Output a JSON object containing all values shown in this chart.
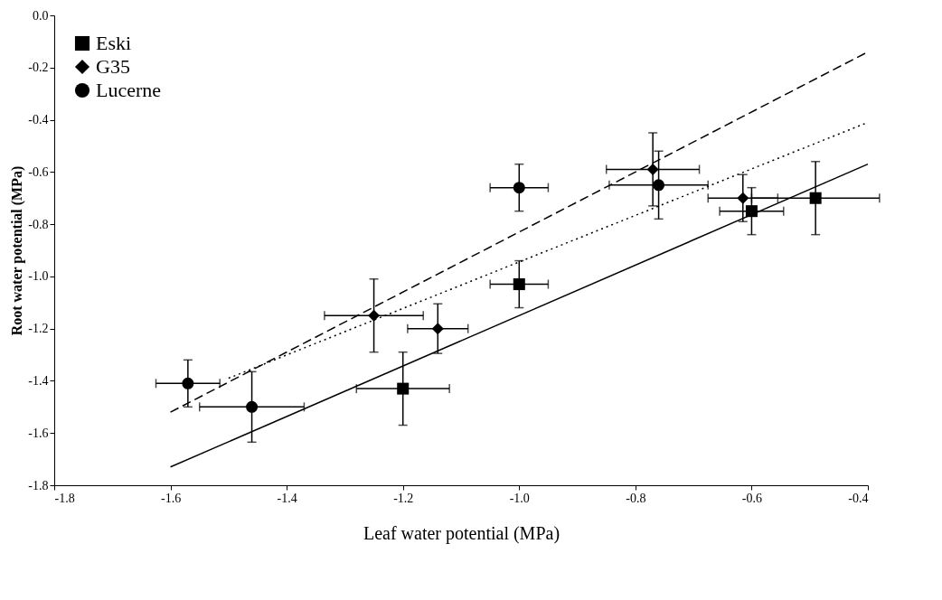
{
  "chart_data": {
    "type": "scatter",
    "xlabel": "Leaf water potential (MPa)",
    "ylabel": "Root water potential (MPa)",
    "xlim": [
      -1.8,
      -0.4
    ],
    "ylim": [
      -1.8,
      0.0
    ],
    "xticks": [
      -1.8,
      -1.6,
      -1.4,
      -1.2,
      {
        "value": -1.0,
        "label": "-1.0"
      },
      -0.8,
      -0.6,
      -0.4
    ],
    "yticks": [
      {
        "value": 0.0,
        "label": "0.0"
      },
      -0.2,
      -0.4,
      -0.6,
      -0.8,
      {
        "value": -1.0,
        "label": "-1.0"
      },
      -1.2,
      -1.4,
      -1.6,
      -1.8
    ],
    "grid": false,
    "legend": "top left",
    "series": [
      {
        "name": "Eski",
        "type": "scatter",
        "marker": "square",
        "color": "#000000",
        "x": [
          -1.2,
          -1.0,
          -0.6,
          -0.49
        ],
        "values": [
          -1.43,
          -1.03,
          -0.75,
          -0.7
        ],
        "errors": [
          0.14,
          0.09,
          0.09,
          0.14
        ],
        "xerrors": [
          0.08,
          0.05,
          0.055,
          0.11
        ]
      },
      {
        "name": "G35",
        "type": "scatter",
        "marker": "diamond",
        "color": "#000000",
        "x": [
          -1.25,
          -1.14,
          -0.77,
          -0.615
        ],
        "values": [
          -1.15,
          -1.2,
          -0.59,
          -0.7
        ],
        "errors": [
          0.14,
          0.095,
          0.14,
          0.09
        ],
        "xerrors": [
          0.085,
          0.052,
          0.08,
          0.06
        ]
      },
      {
        "name": "Lucerne",
        "type": "scatter",
        "marker": "circle",
        "color": "#000000",
        "x": [
          -1.57,
          -1.46,
          -1.0,
          -0.76
        ],
        "values": [
          -1.41,
          -1.5,
          -0.66,
          -0.65
        ],
        "errors": [
          0.09,
          0.135,
          0.09,
          0.13
        ],
        "xerrors": [
          0.055,
          0.09,
          0.05,
          0.085
        ]
      },
      {
        "type": "line",
        "line_style": "solid",
        "color": "#000000",
        "x": [
          -1.6,
          -0.4
        ],
        "values": [
          -1.73,
          -0.57
        ]
      },
      {
        "type": "line",
        "line_style": "dotted",
        "color": "#000000",
        "x": [
          -1.5,
          -0.4
        ],
        "values": [
          -1.39,
          -0.41
        ]
      },
      {
        "type": "line",
        "line_style": "dashed",
        "color": "#000000",
        "x": [
          -1.6,
          -0.4
        ],
        "values": [
          -1.52,
          -0.14
        ]
      }
    ]
  }
}
